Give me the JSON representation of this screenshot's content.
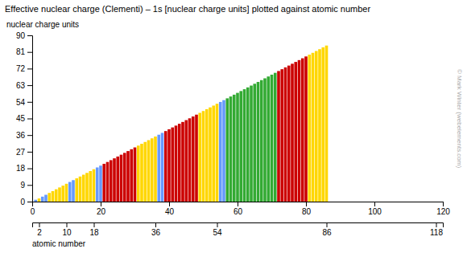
{
  "chart_data": {
    "type": "bar",
    "title": "Effective nuclear charge (Clementi) – 1s [nuclear charge units] plotted against atomic number",
    "xlabel": "atomic number",
    "ylabel": "nuclear charge units",
    "annotations": [
      "© Mark Winter (webelements.com)"
    ],
    "x": [
      1,
      2,
      3,
      4,
      5,
      6,
      7,
      8,
      9,
      10,
      11,
      12,
      13,
      14,
      15,
      16,
      17,
      18,
      19,
      20,
      21,
      22,
      23,
      24,
      25,
      26,
      27,
      28,
      29,
      30,
      31,
      32,
      33,
      34,
      35,
      36,
      37,
      38,
      39,
      40,
      41,
      42,
      43,
      44,
      45,
      46,
      47,
      48,
      49,
      50,
      51,
      52,
      53,
      54,
      55,
      56,
      57,
      58,
      59,
      60,
      61,
      62,
      63,
      64,
      65,
      66,
      67,
      68,
      69,
      70,
      71,
      72,
      73,
      74,
      75,
      76,
      77,
      78,
      79,
      80,
      81,
      82,
      83,
      84,
      85,
      86
    ],
    "values": [
      1.0,
      1.6875,
      2.6906,
      3.6848,
      4.6795,
      5.6727,
      6.6651,
      7.6579,
      8.6501,
      9.6421,
      10.6259,
      11.6089,
      12.591,
      13.5745,
      14.5578,
      15.5408,
      16.5239,
      17.5075,
      18.4896,
      19.473,
      20.4566,
      21.4409,
      22.4256,
      23.4138,
      24.3963,
      25.381,
      26.3668,
      27.3526,
      28.3396,
      29.3245,
      30.3093,
      31.2947,
      32.2786,
      33.2622,
      34.2442,
      35.2268,
      36.2083,
      37.1926,
      38.1777,
      39.1622,
      40.1492,
      41.1364,
      42.1234,
      43.1093,
      44.0958,
      45.0816,
      46.0755,
      47.0606,
      48.0437,
      49.027,
      50.0108,
      50.994,
      51.9762,
      52.9584,
      53.9395,
      54.924,
      55.9067,
      56.8915,
      57.8764,
      58.8612,
      59.8459,
      60.8308,
      61.8155,
      62.8092,
      63.7849,
      64.7697,
      65.7544,
      66.7393,
      67.724,
      68.7088,
      69.6971,
      70.6818,
      71.6669,
      72.6517,
      73.6365,
      74.6214,
      75.606,
      76.594,
      77.5787,
      78.5634,
      79.548,
      80.5319,
      81.5159,
      82.4999,
      83.4839,
      84.4679
    ],
    "colors": [
      "#6699ff",
      "#ffd700",
      "#6699ff",
      "#6699ff",
      "#ffd700",
      "#ffd700",
      "#ffd700",
      "#ffd700",
      "#ffd700",
      "#ffd700",
      "#6699ff",
      "#6699ff",
      "#ffd700",
      "#ffd700",
      "#ffd700",
      "#ffd700",
      "#ffd700",
      "#ffd700",
      "#6699ff",
      "#6699ff",
      "#cc0000",
      "#cc0000",
      "#cc0000",
      "#cc0000",
      "#cc0000",
      "#cc0000",
      "#cc0000",
      "#cc0000",
      "#cc0000",
      "#cc0000",
      "#ffd700",
      "#ffd700",
      "#ffd700",
      "#ffd700",
      "#ffd700",
      "#ffd700",
      "#6699ff",
      "#6699ff",
      "#cc0000",
      "#cc0000",
      "#cc0000",
      "#cc0000",
      "#cc0000",
      "#cc0000",
      "#cc0000",
      "#cc0000",
      "#cc0000",
      "#cc0000",
      "#ffd700",
      "#ffd700",
      "#ffd700",
      "#ffd700",
      "#ffd700",
      "#ffd700",
      "#6699ff",
      "#6699ff",
      "#33aa33",
      "#33aa33",
      "#33aa33",
      "#33aa33",
      "#33aa33",
      "#33aa33",
      "#33aa33",
      "#33aa33",
      "#33aa33",
      "#33aa33",
      "#33aa33",
      "#33aa33",
      "#33aa33",
      "#33aa33",
      "#33aa33",
      "#cc0000",
      "#cc0000",
      "#cc0000",
      "#cc0000",
      "#cc0000",
      "#cc0000",
      "#cc0000",
      "#cc0000",
      "#cc0000",
      "#ffd700",
      "#ffd700",
      "#ffd700",
      "#ffd700",
      "#ffd700",
      "#ffd700"
    ],
    "xlim": [
      0,
      120
    ],
    "xticks": [
      0,
      20,
      40,
      60,
      80,
      100,
      120
    ],
    "x2lim": [
      0,
      120
    ],
    "x2ticks": [
      2,
      10,
      18,
      36,
      54,
      86,
      118
    ],
    "ylim": [
      0,
      90
    ],
    "yticks": [
      0,
      9,
      18,
      27,
      36,
      45,
      54,
      63,
      72,
      81,
      90
    ]
  }
}
